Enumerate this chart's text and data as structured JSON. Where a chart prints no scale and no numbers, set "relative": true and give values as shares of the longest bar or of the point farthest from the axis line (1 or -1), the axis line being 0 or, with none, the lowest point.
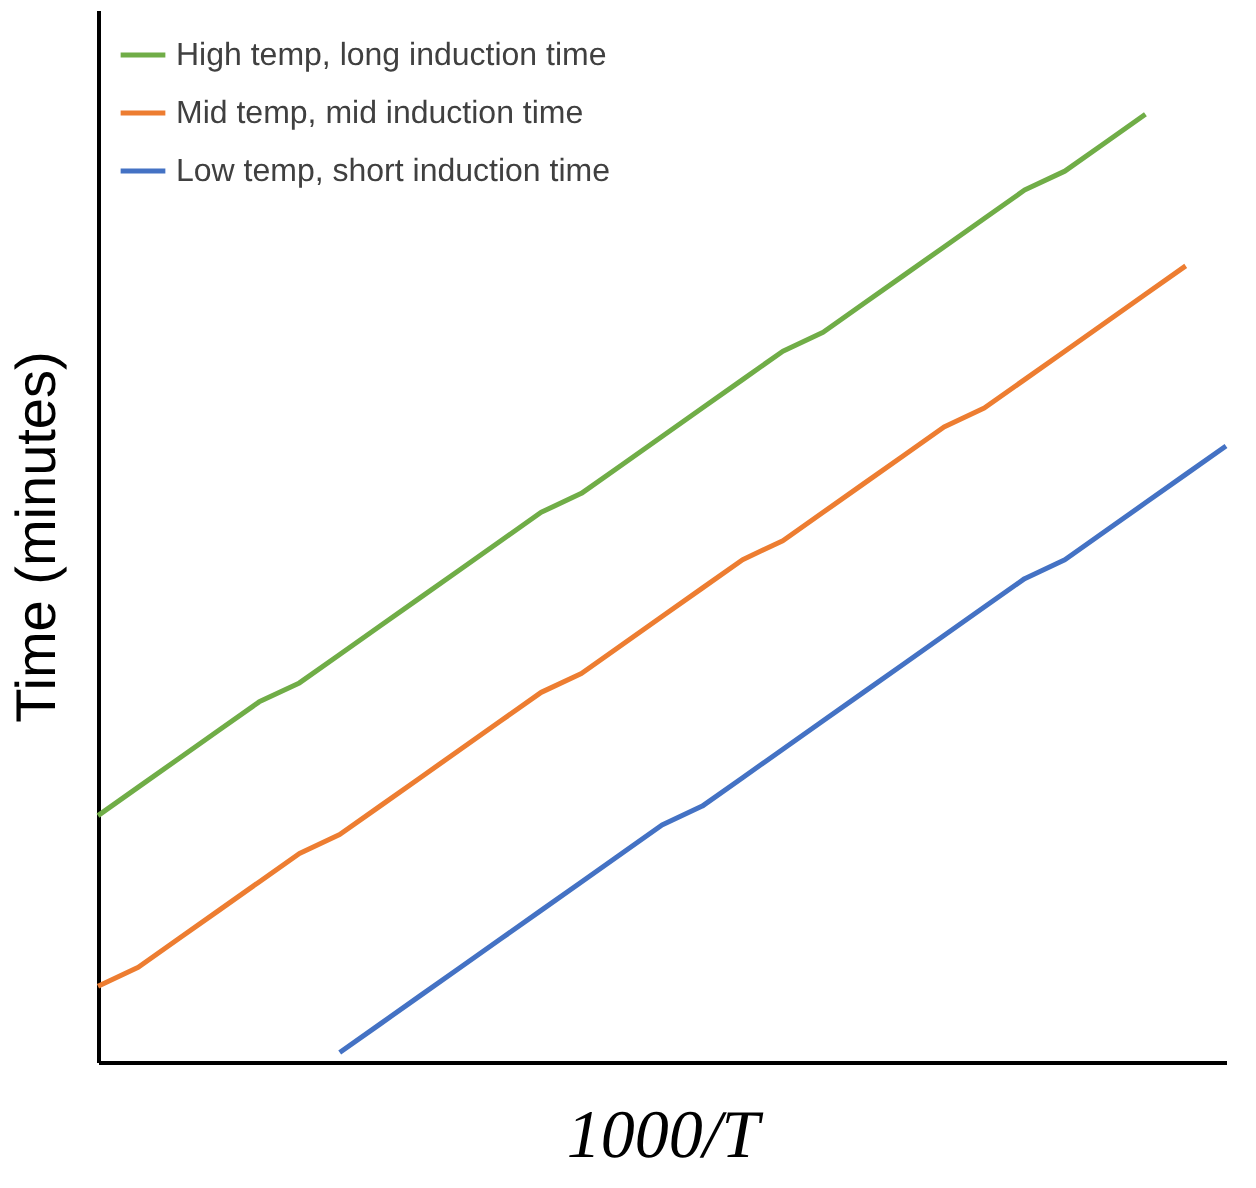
{
  "chart_data": {
    "type": "line",
    "relative": true,
    "xlabel": "1000/T",
    "ylabel": "Time (minutes)",
    "categories": [
      null,
      null,
      null,
      null,
      null,
      null,
      null,
      null,
      null,
      null,
      null,
      null,
      null,
      null,
      null,
      null,
      null,
      null,
      null,
      null,
      null,
      null,
      null,
      null,
      null,
      null,
      null,
      null,
      null
    ],
    "series": [
      {
        "name": "High temp, long induction time",
        "color": "#70ad47",
        "values": [
          0.26,
          0.29,
          0.32,
          0.35,
          0.38,
          0.4,
          0.43,
          0.46,
          0.49,
          0.52,
          0.55,
          0.58,
          0.6,
          0.63,
          0.66,
          0.69,
          0.72,
          0.75,
          0.77,
          0.8,
          0.83,
          0.86,
          0.89,
          0.92,
          0.94,
          0.97,
          1.0,
          null,
          null
        ]
      },
      {
        "name": "Mid temp, mid induction time",
        "color": "#ed7d31",
        "values": [
          0.08,
          0.1,
          0.13,
          0.16,
          0.19,
          0.22,
          0.24,
          0.27,
          0.3,
          0.33,
          0.36,
          0.39,
          0.41,
          0.44,
          0.47,
          0.5,
          0.53,
          0.55,
          0.58,
          0.61,
          0.64,
          0.67,
          0.69,
          0.72,
          0.75,
          0.78,
          0.81,
          0.84,
          null
        ]
      },
      {
        "name": "Low temp, short induction time",
        "color": "#4472c4",
        "values": [
          null,
          null,
          null,
          null,
          null,
          null,
          0.01,
          0.04,
          0.07,
          0.1,
          0.13,
          0.16,
          0.19,
          0.22,
          0.25,
          0.27,
          0.3,
          0.33,
          0.36,
          0.39,
          0.42,
          0.45,
          0.48,
          0.51,
          0.53,
          0.56,
          0.59,
          0.62,
          0.65
        ]
      }
    ],
    "legend": "top left",
    "grid": false,
    "marker": "none",
    "line_style": "solid"
  }
}
